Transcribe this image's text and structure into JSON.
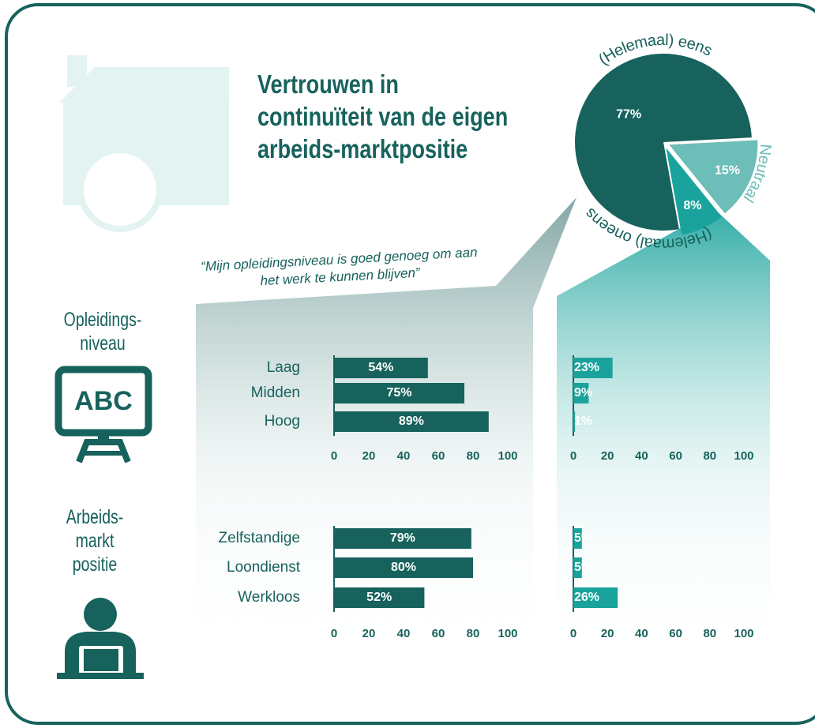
{
  "chart_data": [
    {
      "type": "pie",
      "title": "Vertrouwen in continuïteit van de eigen arbeids-marktpositie",
      "subtitle": "“Mijn opleidingsniveau is goed genoeg om aan het werk te kunnen blijven”",
      "categories": [
        "(Helemaal) eens",
        "Neutraal",
        "(Helemaal) oneens"
      ],
      "values": [
        77,
        15,
        8
      ],
      "value_labels": [
        "77%",
        "15%",
        "8%"
      ],
      "colors": [
        "#17625c",
        "#6dbdb8",
        "#1aa39c"
      ]
    },
    {
      "type": "hbar",
      "title": "Opleidings-niveau",
      "categories": [
        "Laag",
        "Midden",
        "Hoog"
      ],
      "values": [
        54,
        75,
        89
      ],
      "value_labels": [
        "54%",
        "75%",
        "89%"
      ],
      "color": "#17625c",
      "xlim": [
        0,
        100
      ],
      "xticks": [
        0,
        20,
        40,
        60,
        80,
        100
      ]
    },
    {
      "type": "hbar",
      "values": [
        23,
        9,
        1
      ],
      "value_labels": [
        "23%",
        "9%",
        "1%"
      ],
      "color": "#1aa39c",
      "xlim": [
        0,
        100
      ],
      "xticks": [
        0,
        20,
        40,
        60,
        80,
        100
      ]
    },
    {
      "type": "hbar",
      "title": "Arbeids-markt positie",
      "categories": [
        "Zelfstandige",
        "Loondienst",
        "Werkloos"
      ],
      "values": [
        79,
        80,
        52
      ],
      "value_labels": [
        "79%",
        "80%",
        "52%"
      ],
      "color": "#17625c",
      "xlim": [
        0,
        100
      ],
      "xticks": [
        0,
        20,
        40,
        60,
        80,
        100
      ]
    },
    {
      "type": "hbar",
      "values": [
        5,
        5,
        26
      ],
      "value_labels": [
        "5%",
        "5%",
        "26%"
      ],
      "color": "#1aa39c",
      "xlim": [
        0,
        100
      ],
      "xticks": [
        0,
        20,
        40,
        60,
        80,
        100
      ]
    }
  ]
}
